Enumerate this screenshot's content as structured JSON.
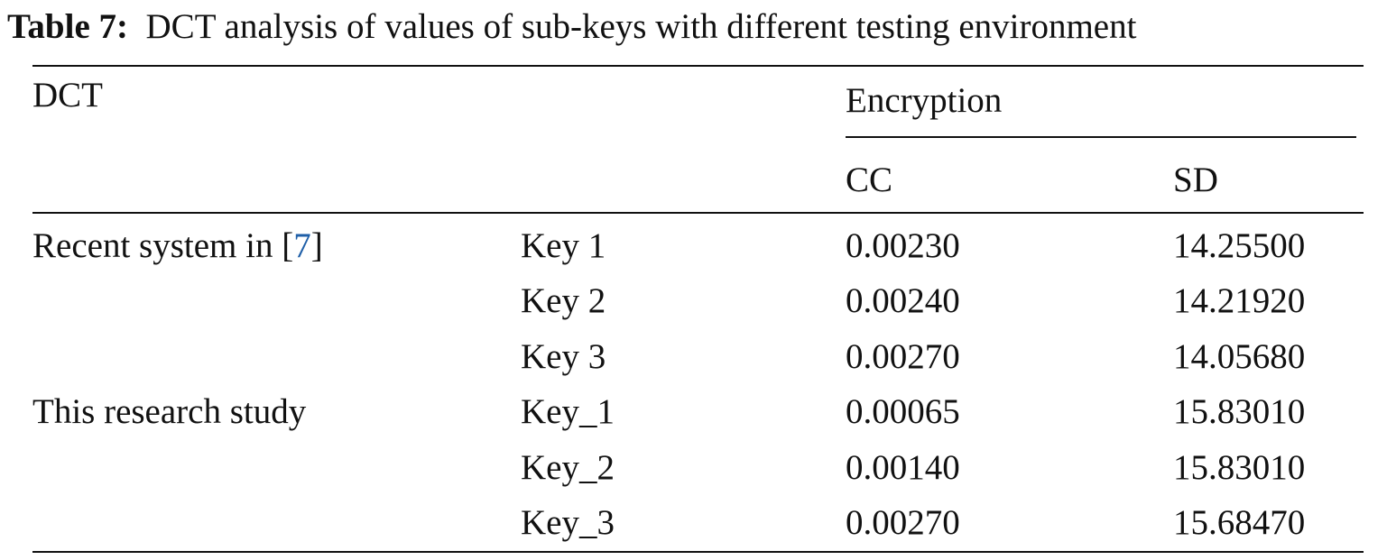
{
  "caption": {
    "label": "Table 7:",
    "text": "DCT analysis of values of sub-keys with different testing environment"
  },
  "table": {
    "header": {
      "method": "DCT",
      "group": "Encryption",
      "columns": [
        "CC",
        "SD"
      ]
    },
    "groups": [
      {
        "label": "Recent system in [",
        "ref": "7",
        "label_end": "]",
        "rows": [
          {
            "key": "Key 1",
            "cc": "0.00230",
            "sd": "14.25500"
          },
          {
            "key": "Key 2",
            "cc": "0.00240",
            "sd": "14.21920"
          },
          {
            "key": "Key 3",
            "cc": "0.00270",
            "sd": "14.05680"
          }
        ]
      },
      {
        "label": "This research study",
        "rows": [
          {
            "key": "Key_1",
            "cc": "0.00065",
            "sd": "15.83010"
          },
          {
            "key": "Key_2",
            "cc": "0.00140",
            "sd": "15.83010"
          },
          {
            "key": "Key_3",
            "cc": "0.00270",
            "sd": "15.68470"
          }
        ]
      }
    ]
  }
}
